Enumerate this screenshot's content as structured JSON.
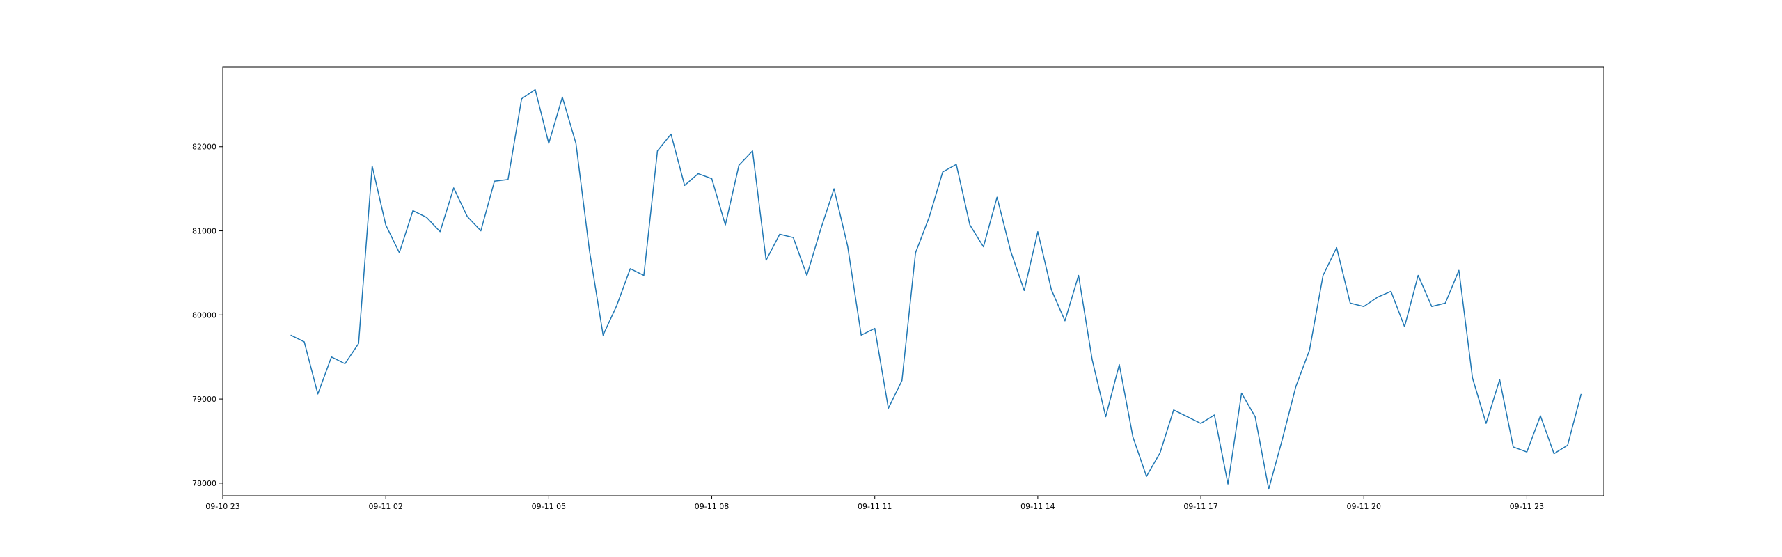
{
  "chart_data": {
    "type": "line",
    "title": "",
    "xlabel": "",
    "ylabel": "",
    "legend": "none",
    "grid": false,
    "colors": {
      "series": "#1f77b4",
      "axes": "#000000",
      "background": "#ffffff"
    },
    "x_start": "09-10 23:00",
    "x_step_minutes": 15,
    "x_range": [
      "09-10 23:00",
      "09-12 00:25"
    ],
    "ylim": [
      77850,
      82950
    ],
    "x_ticks": [
      {
        "label": "09-10 23",
        "hour": 0
      },
      {
        "label": "09-11 02",
        "hour": 3
      },
      {
        "label": "09-11 05",
        "hour": 6
      },
      {
        "label": "09-11 08",
        "hour": 9
      },
      {
        "label": "09-11 11",
        "hour": 12
      },
      {
        "label": "09-11 14",
        "hour": 15
      },
      {
        "label": "09-11 17",
        "hour": 18
      },
      {
        "label": "09-11 20",
        "hour": 21
      },
      {
        "label": "09-11 23",
        "hour": 24
      }
    ],
    "y_ticks": [
      {
        "label": "78000",
        "value": 78000
      },
      {
        "label": "79000",
        "value": 79000
      },
      {
        "label": "80000",
        "value": 80000
      },
      {
        "label": "81000",
        "value": 81000
      },
      {
        "label": "82000",
        "value": 82000
      }
    ],
    "series": [
      {
        "points": [
          [
            "09-11 00:15",
            79760
          ],
          [
            "09-11 00:30",
            79680
          ],
          [
            "09-11 00:45",
            79060
          ],
          [
            "09-11 01:00",
            79500
          ],
          [
            "09-11 01:15",
            79420
          ],
          [
            "09-11 01:30",
            79660
          ],
          [
            "09-11 01:45",
            81770
          ],
          [
            "09-11 02:00",
            81070
          ],
          [
            "09-11 02:15",
            80740
          ],
          [
            "09-11 02:30",
            81240
          ],
          [
            "09-11 02:45",
            81160
          ],
          [
            "09-11 03:00",
            80990
          ],
          [
            "09-11 03:15",
            81510
          ],
          [
            "09-11 03:30",
            81170
          ],
          [
            "09-11 03:45",
            81000
          ],
          [
            "09-11 04:00",
            81590
          ],
          [
            "09-11 04:15",
            81610
          ],
          [
            "09-11 04:30",
            82570
          ],
          [
            "09-11 04:45",
            82680
          ],
          [
            "09-11 05:00",
            82040
          ],
          [
            "09-11 05:15",
            82590
          ],
          [
            "09-11 05:30",
            82040
          ],
          [
            "09-11 05:45",
            80760
          ],
          [
            "09-11 06:00",
            79760
          ],
          [
            "09-11 06:15",
            80110
          ],
          [
            "09-11 06:30",
            80550
          ],
          [
            "09-11 06:45",
            80470
          ],
          [
            "09-11 07:00",
            81950
          ],
          [
            "09-11 07:15",
            82150
          ],
          [
            "09-11 07:30",
            81540
          ],
          [
            "09-11 07:45",
            81680
          ],
          [
            "09-11 08:00",
            81620
          ],
          [
            "09-11 08:15",
            81070
          ],
          [
            "09-11 08:30",
            81780
          ],
          [
            "09-11 08:45",
            81950
          ],
          [
            "09-11 09:00",
            80650
          ],
          [
            "09-11 09:15",
            80960
          ],
          [
            "09-11 09:30",
            80920
          ],
          [
            "09-11 09:45",
            80470
          ],
          [
            "09-11 10:00",
            81010
          ],
          [
            "09-11 10:15",
            81500
          ],
          [
            "09-11 10:30",
            80820
          ],
          [
            "09-11 10:45",
            79760
          ],
          [
            "09-11 11:00",
            79840
          ],
          [
            "09-11 11:15",
            78890
          ],
          [
            "09-11 11:30",
            79220
          ],
          [
            "09-11 11:45",
            80740
          ],
          [
            "09-11 12:00",
            81160
          ],
          [
            "09-11 12:15",
            81700
          ],
          [
            "09-11 12:30",
            81790
          ],
          [
            "09-11 12:45",
            81070
          ],
          [
            "09-11 13:00",
            80810
          ],
          [
            "09-11 13:15",
            81400
          ],
          [
            "09-11 13:30",
            80760
          ],
          [
            "09-11 13:45",
            80290
          ],
          [
            "09-11 14:00",
            80990
          ],
          [
            "09-11 14:15",
            80300
          ],
          [
            "09-11 14:30",
            79930
          ],
          [
            "09-11 14:45",
            80470
          ],
          [
            "09-11 15:00",
            79470
          ],
          [
            "09-11 15:15",
            78790
          ],
          [
            "09-11 15:30",
            79410
          ],
          [
            "09-11 15:45",
            78550
          ],
          [
            "09-11 16:00",
            78080
          ],
          [
            "09-11 16:15",
            78360
          ],
          [
            "09-11 16:30",
            78870
          ],
          [
            "09-11 16:45",
            78790
          ],
          [
            "09-11 17:00",
            78710
          ],
          [
            "09-11 17:15",
            78810
          ],
          [
            "09-11 17:30",
            77990
          ],
          [
            "09-11 17:45",
            79070
          ],
          [
            "09-11 18:00",
            78790
          ],
          [
            "09-11 18:15",
            77930
          ],
          [
            "09-11 18:30",
            78520
          ],
          [
            "09-11 18:45",
            79150
          ],
          [
            "09-11 19:00",
            79580
          ],
          [
            "09-11 19:15",
            80470
          ],
          [
            "09-11 19:30",
            80800
          ],
          [
            "09-11 19:45",
            80140
          ],
          [
            "09-11 20:00",
            80100
          ],
          [
            "09-11 20:15",
            80210
          ],
          [
            "09-11 20:30",
            80280
          ],
          [
            "09-11 20:45",
            79860
          ],
          [
            "09-11 21:00",
            80470
          ],
          [
            "09-11 21:15",
            80100
          ],
          [
            "09-11 21:30",
            80140
          ],
          [
            "09-11 21:45",
            80530
          ],
          [
            "09-11 22:00",
            79250
          ],
          [
            "09-11 22:15",
            78710
          ],
          [
            "09-11 22:30",
            79230
          ],
          [
            "09-11 22:45",
            78430
          ],
          [
            "09-11 23:00",
            78370
          ],
          [
            "09-11 23:15",
            78800
          ],
          [
            "09-11 23:30",
            78350
          ],
          [
            "09-11 23:45",
            78450
          ],
          [
            "09-12 00:00",
            79060
          ]
        ]
      }
    ]
  }
}
